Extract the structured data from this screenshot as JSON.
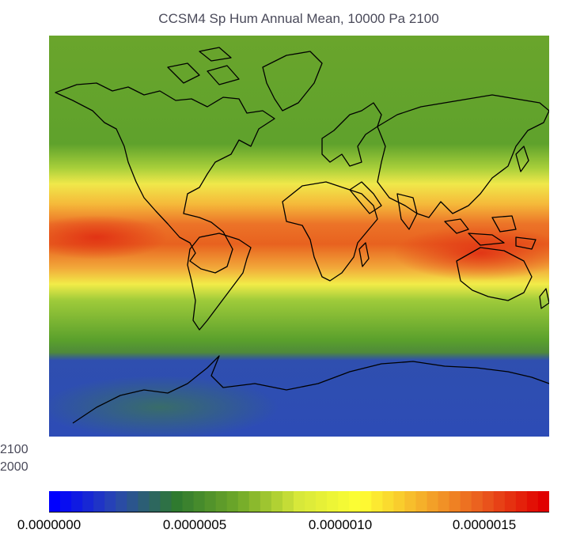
{
  "title": "CCSM4 Sp Hum Annual Mean, 10000 Pa 2100",
  "year_labels": [
    "2100",
    "2000"
  ],
  "colorbar": {
    "ticks": [
      "0.0000000",
      "0.0000005",
      "0.0000010",
      "0.0000015"
    ],
    "colors": [
      "#0000ff",
      "#2a47b0",
      "#2f7a2f",
      "#6fa828",
      "#d7e83a",
      "#ffff33",
      "#f5b02a",
      "#ea5a1e",
      "#e00000"
    ]
  },
  "map": {
    "colors": {
      "ocean_band_green": "#5aa02c",
      "tropical_red": "#e5501e",
      "subtropical_yellow": "#f3e84a",
      "southern_blue": "#2f4fb0",
      "coastline": "#000000"
    }
  }
}
